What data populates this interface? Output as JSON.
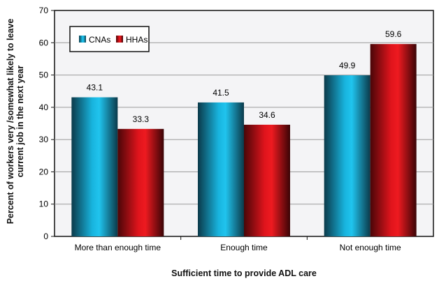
{
  "chart_data": {
    "type": "bar",
    "categories": [
      "More than enough time",
      "Enough time",
      "Not enough time"
    ],
    "series": [
      {
        "name": "CNAs",
        "values": [
          43.1,
          41.5,
          49.9
        ],
        "color": "#1ab8e0"
      },
      {
        "name": "HHAs",
        "values": [
          33.3,
          34.6,
          59.6
        ],
        "color": "#d9141b"
      }
    ],
    "xlabel": "Sufficient time to provide ADL care",
    "ylabel": "Percent of workers very /somewhat likely to leave current job in the next year",
    "ylim": [
      0,
      70
    ],
    "yticks": [
      0,
      10,
      20,
      30,
      40,
      50,
      60,
      70
    ],
    "grid": true,
    "legend": "top-left",
    "data_labels": true
  }
}
